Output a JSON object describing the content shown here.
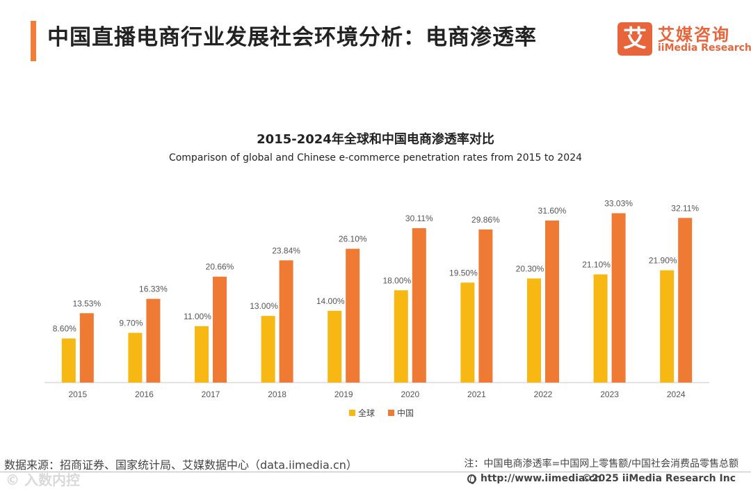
{
  "header": {
    "title": "中国直播电商行业发展社会环境分析：电商渗透率",
    "accent_color": "#f07d3a"
  },
  "logo": {
    "mark": "艾",
    "name_cn": "艾媒咨询",
    "name_en": "iiMedia Research",
    "color": "#e8643a"
  },
  "chart_data": {
    "type": "bar",
    "title": "2015-2024年全球和中国电商渗透率对比",
    "subtitle": "Comparison of global and Chinese e-commerce penetration rates from 2015 to 2024",
    "categories": [
      "2015",
      "2016",
      "2017",
      "2018",
      "2019",
      "2020",
      "2021",
      "2022",
      "2023",
      "2024"
    ],
    "series": [
      {
        "name": "全球",
        "color": "#f7b813",
        "values": [
          8.6,
          9.7,
          11.0,
          13.0,
          14.0,
          18.0,
          19.5,
          20.3,
          21.1,
          21.9
        ],
        "labels": [
          "8.60%",
          "9.70%",
          "11.00%",
          "13.00%",
          "14.00%",
          "18.00%",
          "19.50%",
          "20.30%",
          "21.10%",
          "21.90%"
        ]
      },
      {
        "name": "中国",
        "color": "#ee7a33",
        "values": [
          13.53,
          16.33,
          20.66,
          23.84,
          26.1,
          30.11,
          29.86,
          31.6,
          33.03,
          32.11
        ],
        "labels": [
          "13.53%",
          "16.33%",
          "20.66%",
          "23.84%",
          "26.10%",
          "30.11%",
          "29.86%",
          "31.60%",
          "33.03%",
          "32.11%"
        ]
      }
    ],
    "ylim": [
      0,
      35
    ],
    "xlabel": "",
    "ylabel": "",
    "grid": false,
    "legend": "bottom-center"
  },
  "footer": {
    "source": "数据来源：招商证券、国家统计局、艾媒数据中心（data.iimedia.cn）",
    "note": "注：中国电商渗透率=中国网上零售额/中国社会消费品零售总额",
    "website": "http://www.iimedia.cn",
    "copyright": "©2025  iiMedia Research  Inc",
    "watermark": "© 入数内控"
  }
}
